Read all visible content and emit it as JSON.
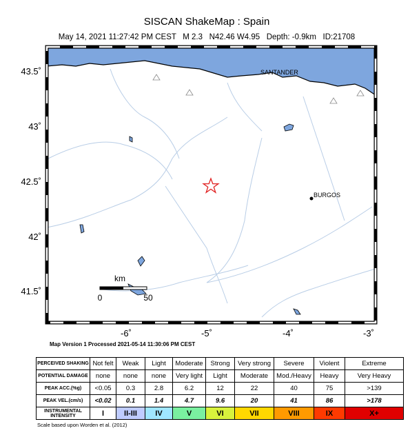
{
  "header": {
    "title": "SISCAN ShakeMap : Spain",
    "subtitle": "May 14, 2021 11:27:42 PM CEST   M 2.3   N42.46 W4.95   Depth: -0.9km   ID:21708"
  },
  "map": {
    "lat_labels": [
      "43.5˚",
      "43˚",
      "42.5˚",
      "42˚",
      "41.5˚"
    ],
    "lon_labels": [
      "-6˚",
      "-5˚",
      "-4˚",
      "-3˚"
    ],
    "places": [
      "SANTANDER",
      "BURGOS"
    ],
    "scale": {
      "unit": "km",
      "start": "0",
      "end": "50"
    }
  },
  "footer": "Map Version 1 Processed 2021-05-14 11:30:06 PM CEST",
  "legend": {
    "rows": [
      {
        "label": "PERCEIVED SHAKING",
        "cells": [
          "Not felt",
          "Weak",
          "Light",
          "Moderate",
          "Strong",
          "Very strong",
          "Severe",
          "Violent",
          "Extreme"
        ]
      },
      {
        "label": "POTENTIAL DAMAGE",
        "cells": [
          "none",
          "none",
          "none",
          "Very light",
          "Light",
          "Moderate",
          "Mod./Heavy",
          "Heavy",
          "Very Heavy"
        ]
      },
      {
        "label": "PEAK ACC.(%g)",
        "cells": [
          "<0.05",
          "0.3",
          "2.8",
          "6.2",
          "12",
          "22",
          "40",
          "75",
          ">139"
        ]
      },
      {
        "label": "PEAK VEL.(cm/s)",
        "cells": [
          "<0.02",
          "0.1",
          "1.4",
          "4.7",
          "9.6",
          "20",
          "41",
          "86",
          ">178"
        ]
      },
      {
        "label": "INSTRUMENTAL INTENSITY",
        "cells": [
          "I",
          "II-III",
          "IV",
          "V",
          "VI",
          "VII",
          "VIII",
          "IX",
          "X+"
        ]
      }
    ],
    "intensity_colors": [
      "#ffffff",
      "#bfccff",
      "#a0e6ff",
      "#7af0a0",
      "#d8f23c",
      "#ffd800",
      "#ff9a00",
      "#ff3a00",
      "#e00000"
    ]
  },
  "note": "Scale based upon Worden et al. (2012)"
}
